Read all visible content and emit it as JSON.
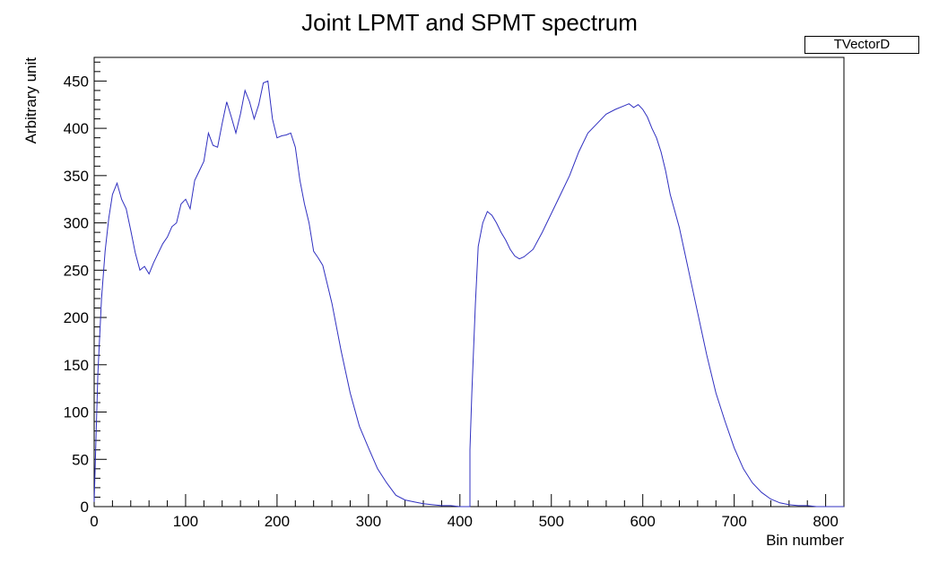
{
  "chart_data": {
    "type": "line",
    "title": "Joint LPMT and SPMT spectrum",
    "xlabel": "Bin number",
    "ylabel": "Arbitrary unit",
    "legend": {
      "label": "TVectorD",
      "placement": "top-right"
    },
    "xlim": [
      0,
      820
    ],
    "ylim": [
      0,
      475
    ],
    "x_ticks": [
      0,
      100,
      200,
      300,
      400,
      500,
      600,
      700,
      800
    ],
    "y_ticks": [
      0,
      50,
      100,
      150,
      200,
      250,
      300,
      350,
      400,
      450
    ],
    "grid": false,
    "line_color": "#3030c0",
    "series": [
      {
        "x": [
          0,
          4,
          8,
          12,
          16,
          20,
          25,
          30,
          35,
          40,
          45,
          50,
          55,
          60,
          65,
          70,
          75,
          80,
          85,
          90,
          95,
          100,
          105,
          110,
          115,
          120,
          125,
          130,
          135,
          140,
          145,
          150,
          155,
          160,
          165,
          170,
          175,
          180,
          185,
          190,
          195,
          200,
          205,
          210,
          215,
          220,
          225,
          230,
          235,
          240,
          245,
          250,
          255,
          260,
          270,
          280,
          290,
          300,
          310,
          320,
          330,
          340,
          350,
          360,
          370,
          380,
          390,
          400,
          410,
          411,
          411,
          413,
          417,
          420,
          425,
          430,
          435,
          440,
          445,
          450,
          455,
          460,
          465,
          470,
          480,
          490,
          500,
          510,
          520,
          530,
          540,
          550,
          560,
          570,
          580,
          585,
          590,
          595,
          600,
          605,
          610,
          615,
          620,
          625,
          630,
          640,
          650,
          660,
          670,
          680,
          690,
          700,
          710,
          720,
          730,
          740,
          750,
          760,
          770,
          780,
          790,
          800,
          810,
          820
        ],
        "values": [
          5,
          140,
          220,
          270,
          305,
          330,
          342,
          325,
          315,
          292,
          268,
          250,
          254,
          246,
          258,
          268,
          278,
          285,
          296,
          300,
          320,
          325,
          315,
          345,
          355,
          365,
          395,
          382,
          380,
          405,
          428,
          412,
          395,
          415,
          440,
          428,
          410,
          425,
          448,
          450,
          410,
          390,
          392,
          393,
          395,
          380,
          345,
          320,
          300,
          270,
          263,
          255,
          235,
          215,
          165,
          120,
          85,
          62,
          40,
          25,
          12,
          7,
          5,
          3,
          2,
          1,
          1,
          0,
          0,
          0,
          60,
          120,
          215,
          275,
          300,
          312,
          308,
          300,
          290,
          282,
          272,
          265,
          262,
          264,
          272,
          290,
          310,
          330,
          350,
          375,
          395,
          405,
          415,
          420,
          424,
          426,
          422,
          425,
          420,
          412,
          400,
          390,
          375,
          355,
          330,
          295,
          250,
          205,
          160,
          120,
          90,
          62,
          40,
          25,
          15,
          8,
          4,
          2,
          1,
          1,
          0,
          0,
          0,
          0
        ]
      }
    ]
  }
}
